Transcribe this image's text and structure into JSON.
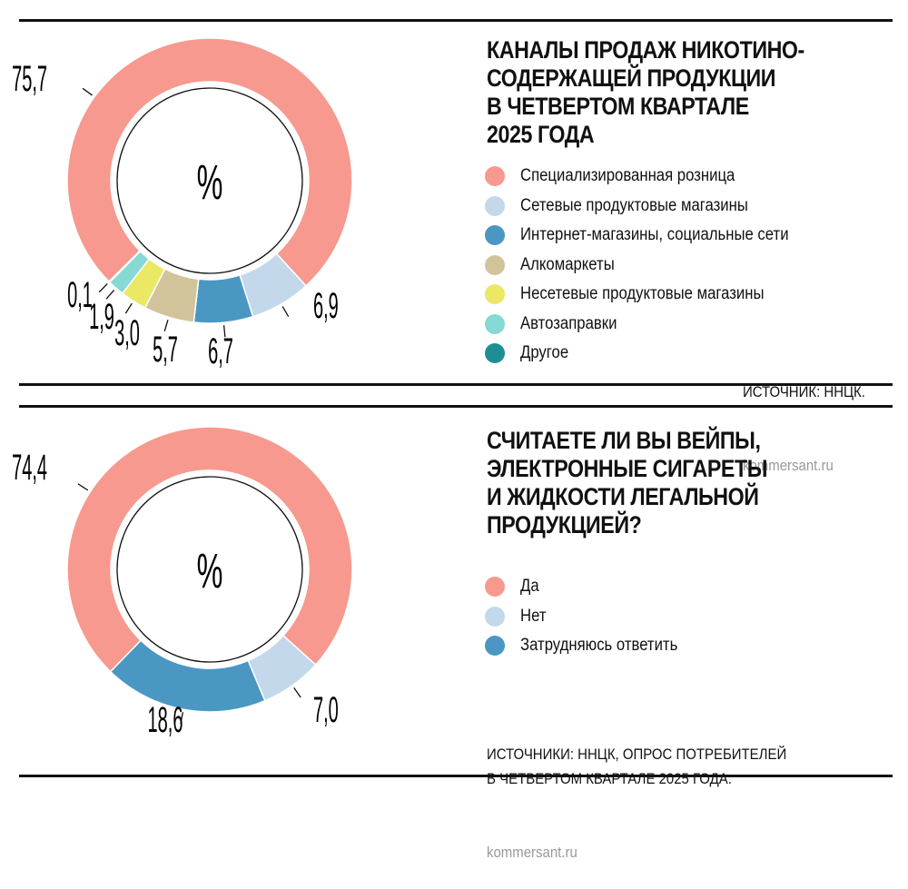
{
  "chart_data": [
    {
      "type": "pie",
      "donut": true,
      "title": "КАНАЛЫ ПРОДАЖ НИКОТИНО-\nСОДЕРЖАЩЕЙ ПРОДУКЦИИ\nВ ЧЕТВЕРТОМ КВАРТАЛЕ\n2025 ГОДА",
      "center_label": "%",
      "categories": [
        "Специализированная розница",
        "Сетевые продуктовые магазины",
        "Интернет-магазины, социальные сети",
        "Алкомаркеты",
        "Несетевые продуктовые магазины",
        "Автозаправки",
        "Другое"
      ],
      "values": [
        75.7,
        6.9,
        6.7,
        5.7,
        3.0,
        1.9,
        0.1
      ],
      "value_labels": [
        "75,7",
        "6,9",
        "6,7",
        "5,7",
        "3,0",
        "1,9",
        "0,1"
      ],
      "colors": [
        "#f7998e",
        "#c3d8ea",
        "#4a97c3",
        "#d2c49a",
        "#ebe866",
        "#86d9d4",
        "#1f8e92"
      ],
      "legend_placement": "right",
      "source": "ИСТОЧНИК: ННЦК.",
      "site": "kommersant.ru"
    },
    {
      "type": "pie",
      "donut": true,
      "title": "СЧИТАЕТЕ ЛИ ВЫ ВЕЙПЫ,\nЭЛЕКТРОННЫЕ СИГАРЕТЫ\nИ ЖИДКОСТИ ЛЕГАЛЬНОЙ\nПРОДУКЦИЕЙ?",
      "center_label": "%",
      "categories": [
        "Да",
        "Нет",
        "Затрудняюсь ответить"
      ],
      "values": [
        74.4,
        7.0,
        18.6
      ],
      "value_labels": [
        "74,4",
        "7,0",
        "18,6"
      ],
      "colors": [
        "#f7998e",
        "#c3d8ea",
        "#4a97c3"
      ],
      "legend_placement": "right",
      "source": "ИСТОЧНИКИ: ННЦК, ОПРОС ПОТРЕБИТЕЛЕЙ\nВ ЧЕТВЕРТОМ КВАРТАЛЕ 2025 ГОДА.",
      "site": "kommersant.ru"
    }
  ]
}
